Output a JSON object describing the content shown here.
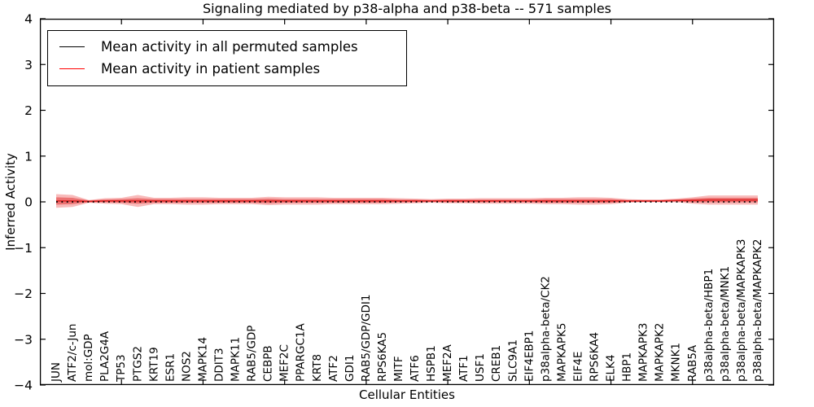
{
  "figure": {
    "background": "#ffffff",
    "frame_color": "#000000"
  },
  "legend": {
    "entries": [
      {
        "label": "Mean activity in all permuted samples",
        "color": "#000000"
      },
      {
        "label": "Mean activity in patient samples",
        "color": "#ff0000"
      }
    ]
  },
  "chart_data": {
    "type": "line",
    "title": "Signaling mediated by p38-alpha and p38-beta -- 571 samples",
    "xlabel": "Cellular Entities",
    "ylabel": "Inferred Activity",
    "xlim": [
      0,
      45
    ],
    "ylim": [
      -4,
      4
    ],
    "grid": false,
    "legend_position": "upper left",
    "ytick_values": [
      4,
      3,
      2,
      1,
      0,
      -1,
      -2,
      -3,
      -4
    ],
    "ytick_labels": [
      "4",
      "3",
      "2",
      "1",
      "0",
      "−1",
      "−2",
      "−3",
      "−4"
    ],
    "xtick_top_values": [
      5,
      10,
      15,
      20,
      25,
      30,
      35,
      40
    ],
    "categories": [
      "JUN",
      "ATF2/c-Jun",
      "mol:GDP",
      "PLA2G4A",
      "TP53",
      "PTGS2",
      "KRT19",
      "ESR1",
      "NOS2",
      "MAPK14",
      "DDIT3",
      "MAPK11",
      "RAB5/GDP",
      "CEBPB",
      "MEF2C",
      "PPARGC1A",
      "KRT8",
      "ATF2",
      "GDI1",
      "RAB5/GDP/GDI1",
      "RPS6KA5",
      "MITF",
      "ATF6",
      "HSPB1",
      "MEF2A",
      "ATF1",
      "USF1",
      "CREB1",
      "SLC9A1",
      "EIF4EBP1",
      "p38alpha-beta/CK2",
      "MAPKAPK5",
      "EIF4E",
      "RPS6KA4",
      "ELK4",
      "HBP1",
      "MAPKAPK3",
      "MAPKAPK2",
      "MKNK1",
      "RAB5A",
      "p38alpha-beta/HBP1",
      "p38alpha-beta/MNK1",
      "p38alpha-beta/MAPKAPK3",
      "p38alpha-beta/MAPKAPK2"
    ],
    "series": [
      {
        "name": "Mean activity in all permuted samples",
        "color": "#000000",
        "linestyle": "dotted",
        "values": [
          0,
          0,
          0,
          0,
          0,
          0,
          0,
          0,
          0,
          0,
          0,
          0,
          0,
          0,
          0,
          0,
          0,
          0,
          0,
          0,
          0,
          0,
          0,
          0,
          0,
          0,
          0,
          0,
          0,
          0,
          0,
          0,
          0,
          0,
          0,
          0,
          0,
          0,
          0,
          0,
          0,
          0,
          0,
          0
        ]
      },
      {
        "name": "Mean activity in patient samples",
        "color": "#dd2020",
        "linestyle": "solid",
        "values": [
          0.02,
          0.02,
          0.01,
          0.02,
          0.02,
          0.02,
          0.02,
          0.02,
          0.02,
          0.02,
          0.02,
          0.02,
          0.02,
          0.02,
          0.02,
          0.02,
          0.02,
          0.02,
          0.02,
          0.02,
          0.02,
          0.02,
          0.02,
          0.02,
          0.02,
          0.02,
          0.02,
          0.02,
          0.02,
          0.02,
          0.02,
          0.02,
          0.02,
          0.02,
          0.02,
          0.02,
          0.02,
          0.02,
          0.03,
          0.03,
          0.04,
          0.04,
          0.04,
          0.04
        ]
      }
    ],
    "bands": [
      {
        "name": "patient-samples-spread-outer",
        "color": "#ef5a5a",
        "opacity": 0.42,
        "half_widths": [
          0.15,
          0.13,
          0.03,
          0.06,
          0.07,
          0.13,
          0.07,
          0.07,
          0.08,
          0.08,
          0.07,
          0.07,
          0.07,
          0.09,
          0.08,
          0.08,
          0.08,
          0.07,
          0.07,
          0.07,
          0.07,
          0.06,
          0.05,
          0.04,
          0.05,
          0.05,
          0.06,
          0.06,
          0.06,
          0.06,
          0.07,
          0.07,
          0.08,
          0.08,
          0.07,
          0.04,
          0.03,
          0.03,
          0.04,
          0.07,
          0.1,
          0.1,
          0.1,
          0.1
        ]
      },
      {
        "name": "patient-samples-spread-inner",
        "color": "#e03030",
        "opacity": 0.52,
        "half_widths": [
          0.08,
          0.07,
          0.02,
          0.03,
          0.04,
          0.06,
          0.04,
          0.04,
          0.04,
          0.04,
          0.04,
          0.04,
          0.04,
          0.05,
          0.04,
          0.04,
          0.04,
          0.04,
          0.04,
          0.04,
          0.04,
          0.03,
          0.03,
          0.02,
          0.03,
          0.03,
          0.03,
          0.03,
          0.03,
          0.03,
          0.04,
          0.04,
          0.04,
          0.04,
          0.04,
          0.02,
          0.02,
          0.02,
          0.02,
          0.04,
          0.05,
          0.05,
          0.05,
          0.05
        ]
      }
    ]
  }
}
